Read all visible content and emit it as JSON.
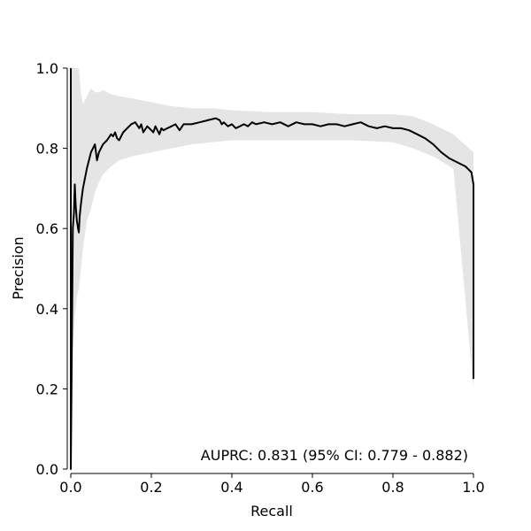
{
  "chart_data": {
    "type": "line",
    "title": "",
    "xlabel": "Recall",
    "ylabel": "Precision",
    "xlim": [
      0.0,
      1.0
    ],
    "ylim": [
      0.0,
      1.0
    ],
    "x_ticks": [
      "0.0",
      "0.2",
      "0.4",
      "0.6",
      "0.8",
      "1.0"
    ],
    "y_ticks": [
      "0.0",
      "0.2",
      "0.4",
      "0.6",
      "0.8",
      "1.0"
    ],
    "grid": false,
    "legend": "none",
    "annotation": "AUPRC: 0.831 (95% CI: 0.779 - 0.882)",
    "colors": {
      "line": "#000000",
      "band": "#e5e5e5"
    },
    "series": [
      {
        "x": [
          0.0,
          0.0,
          0.005,
          0.008,
          0.01,
          0.012,
          0.015,
          0.018,
          0.02,
          0.022,
          0.025,
          0.03,
          0.04,
          0.05,
          0.06,
          0.065,
          0.07,
          0.08,
          0.09,
          0.1,
          0.105,
          0.11,
          0.115,
          0.12,
          0.13,
          0.14,
          0.15,
          0.16,
          0.17,
          0.175,
          0.18,
          0.19,
          0.2,
          0.205,
          0.21,
          0.22,
          0.225,
          0.23,
          0.24,
          0.25,
          0.26,
          0.27,
          0.28,
          0.3,
          0.32,
          0.34,
          0.36,
          0.37,
          0.375,
          0.38,
          0.39,
          0.4,
          0.41,
          0.42,
          0.43,
          0.44,
          0.45,
          0.46,
          0.48,
          0.5,
          0.52,
          0.54,
          0.56,
          0.58,
          0.6,
          0.62,
          0.64,
          0.66,
          0.68,
          0.7,
          0.72,
          0.74,
          0.76,
          0.78,
          0.8,
          0.82,
          0.84,
          0.86,
          0.88,
          0.9,
          0.92,
          0.94,
          0.96,
          0.98,
          0.99,
          0.995,
          1.0,
          1.0
        ],
        "y": [
          1.0,
          0.0,
          0.6,
          0.64,
          0.71,
          0.66,
          0.62,
          0.6,
          0.59,
          0.63,
          0.66,
          0.7,
          0.75,
          0.79,
          0.81,
          0.77,
          0.79,
          0.81,
          0.82,
          0.835,
          0.83,
          0.84,
          0.825,
          0.82,
          0.84,
          0.85,
          0.86,
          0.865,
          0.85,
          0.86,
          0.84,
          0.855,
          0.845,
          0.84,
          0.855,
          0.835,
          0.85,
          0.845,
          0.85,
          0.855,
          0.86,
          0.845,
          0.86,
          0.86,
          0.865,
          0.87,
          0.875,
          0.87,
          0.86,
          0.865,
          0.855,
          0.86,
          0.85,
          0.855,
          0.86,
          0.855,
          0.865,
          0.86,
          0.865,
          0.86,
          0.865,
          0.855,
          0.865,
          0.86,
          0.86,
          0.855,
          0.86,
          0.86,
          0.855,
          0.86,
          0.865,
          0.855,
          0.85,
          0.855,
          0.85,
          0.85,
          0.845,
          0.835,
          0.825,
          0.81,
          0.79,
          0.775,
          0.765,
          0.755,
          0.745,
          0.74,
          0.71,
          0.225
        ]
      }
    ],
    "band": {
      "x": [
        0.0,
        0.005,
        0.01,
        0.015,
        0.02,
        0.025,
        0.03,
        0.04,
        0.05,
        0.06,
        0.07,
        0.08,
        0.1,
        0.12,
        0.15,
        0.2,
        0.25,
        0.3,
        0.35,
        0.4,
        0.5,
        0.6,
        0.7,
        0.8,
        0.85,
        0.9,
        0.95,
        1.0
      ],
      "upper": [
        1.0,
        1.0,
        1.0,
        1.0,
        1.0,
        0.94,
        0.91,
        0.93,
        0.95,
        0.94,
        0.94,
        0.945,
        0.935,
        0.93,
        0.925,
        0.915,
        0.905,
        0.9,
        0.9,
        0.895,
        0.89,
        0.89,
        0.885,
        0.885,
        0.88,
        0.86,
        0.835,
        0.79
      ],
      "lower": [
        0.0,
        0.3,
        0.38,
        0.43,
        0.45,
        0.5,
        0.55,
        0.62,
        0.65,
        0.69,
        0.715,
        0.735,
        0.755,
        0.77,
        0.78,
        0.79,
        0.8,
        0.81,
        0.815,
        0.82,
        0.82,
        0.82,
        0.82,
        0.815,
        0.8,
        0.78,
        0.75,
        0.2
      ]
    }
  }
}
